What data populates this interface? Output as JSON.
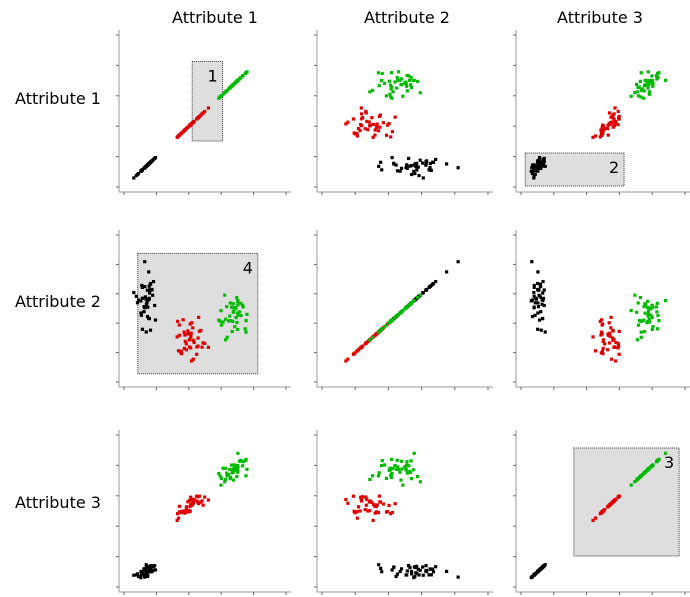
{
  "chart_data": {
    "type": "scatter",
    "kind": "scatterplot-matrix",
    "attributes": [
      "Attribute 1",
      "Attribute 2",
      "Attribute 3"
    ],
    "colors": {
      "black": "#000000",
      "red": "#e00000",
      "green": "#00bb00"
    },
    "brush_fill": "#dedede",
    "axis_range": [
      0,
      1
    ],
    "brushes": [
      {
        "label": "1",
        "row": 0,
        "col": 0,
        "x_range": [
          0.42,
          0.61
        ],
        "y_range": [
          0.3,
          0.83
        ]
      },
      {
        "label": "2",
        "row": 0,
        "col": 2,
        "x_range": [
          0.02,
          0.63
        ],
        "y_range": [
          0.0,
          0.22
        ]
      },
      {
        "label": "3",
        "row": 2,
        "col": 2,
        "x_range": [
          0.32,
          0.97
        ],
        "y_range": [
          0.2,
          0.92
        ]
      },
      {
        "label": "4",
        "row": 1,
        "col": 0,
        "x_range": [
          0.08,
          0.83
        ],
        "y_range": [
          0.05,
          0.88
        ]
      }
    ]
  }
}
